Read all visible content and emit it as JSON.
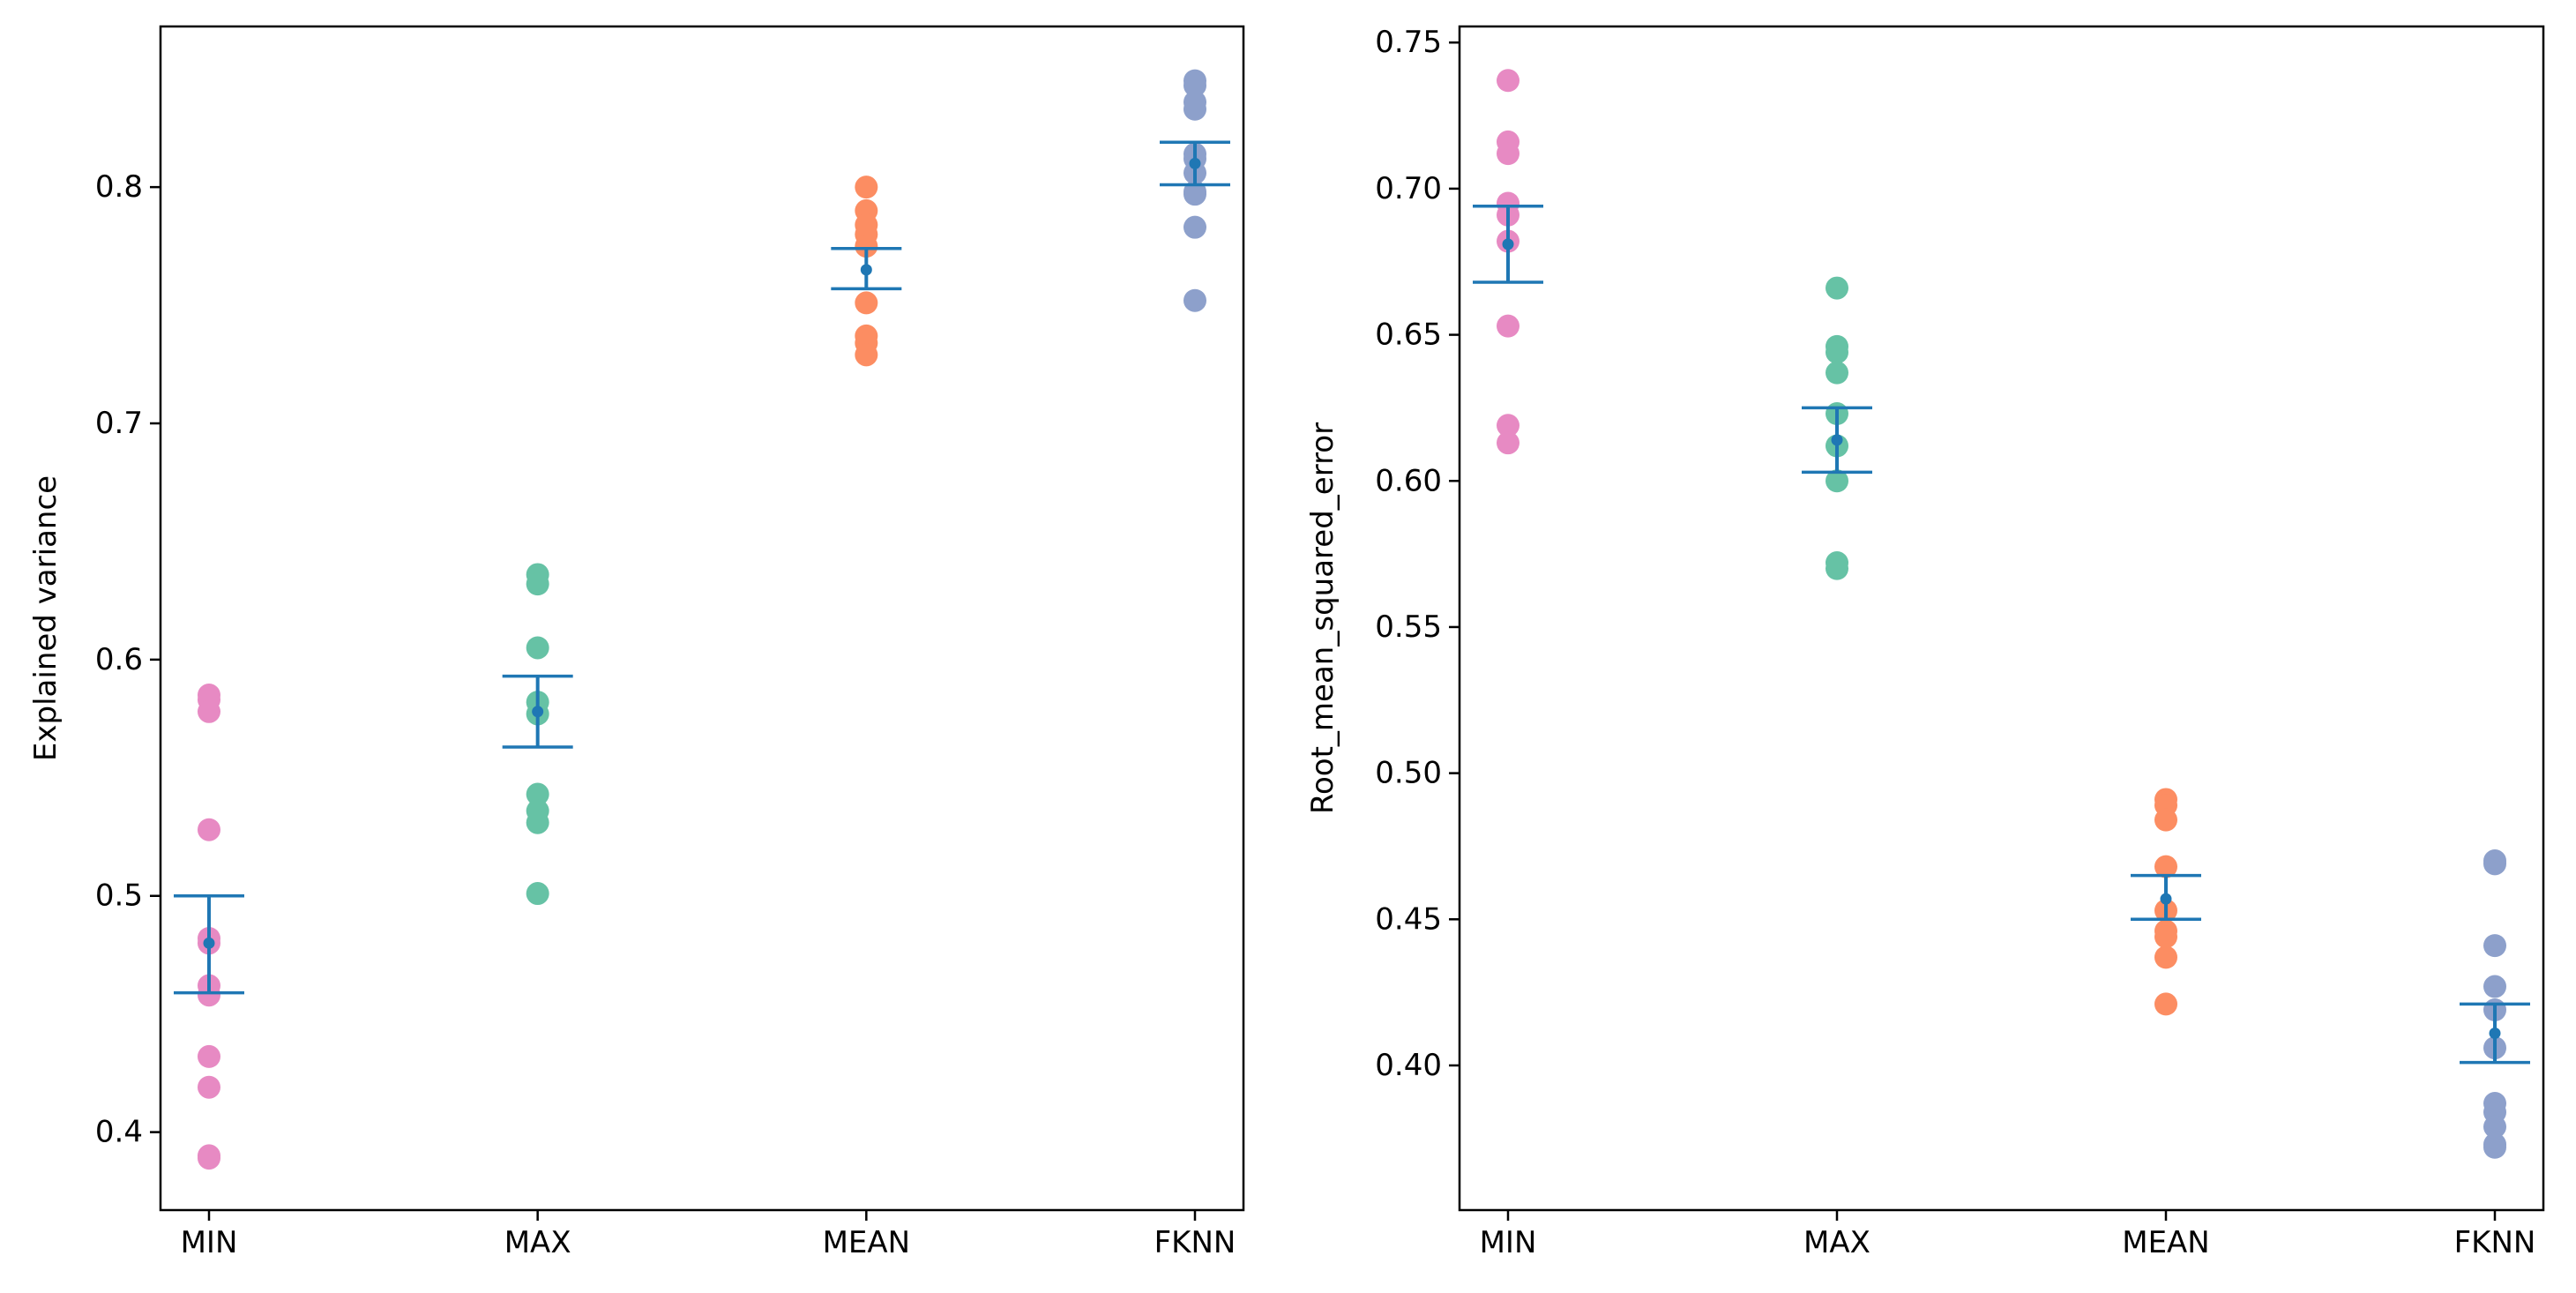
{
  "chart_data": [
    {
      "type": "scatter",
      "title": "",
      "xlabel": "",
      "ylabel": "Explained variance",
      "ylim": [
        0.367,
        0.868
      ],
      "yticks": [
        0.4,
        0.5,
        0.6,
        0.7,
        0.8
      ],
      "ytick_labels": [
        "0.4",
        "0.5",
        "0.6",
        "0.7",
        "0.8"
      ],
      "categories": [
        "MIN",
        "MAX",
        "MEAN",
        "FKNN"
      ],
      "grid": false,
      "series": [
        {
          "name": "MIN",
          "color": "#e78ac3",
          "values": [
            0.585,
            0.583,
            0.578,
            0.528,
            0.482,
            0.48,
            0.462,
            0.458,
            0.432,
            0.419,
            0.39,
            0.389
          ]
        },
        {
          "name": "MAX",
          "color": "#66c2a5",
          "values": [
            0.636,
            0.632,
            0.605,
            0.582,
            0.577,
            0.543,
            0.536,
            0.531,
            0.501
          ]
        },
        {
          "name": "MEAN",
          "color": "#fc8d62",
          "values": [
            0.8,
            0.79,
            0.784,
            0.78,
            0.775,
            0.751,
            0.737,
            0.734,
            0.729
          ]
        },
        {
          "name": "FKNN",
          "color": "#8da0cb",
          "values": [
            0.845,
            0.843,
            0.836,
            0.833,
            0.814,
            0.812,
            0.806,
            0.798,
            0.797,
            0.783,
            0.752
          ]
        }
      ],
      "error_bars": {
        "color": "#1f77b4",
        "mean": [
          0.48,
          0.578,
          0.765,
          0.81
        ],
        "lower": [
          0.459,
          0.563,
          0.757,
          0.801
        ],
        "upper": [
          0.5,
          0.593,
          0.774,
          0.819
        ]
      }
    },
    {
      "type": "scatter",
      "title": "",
      "xlabel": "",
      "ylabel": "Root_mean_squared_error",
      "ylim": [
        0.3505,
        0.7555
      ],
      "yticks": [
        0.4,
        0.45,
        0.5,
        0.55,
        0.6,
        0.65,
        0.7,
        0.75
      ],
      "ytick_labels": [
        "0.40",
        "0.45",
        "0.50",
        "0.55",
        "0.60",
        "0.65",
        "0.70",
        "0.75"
      ],
      "categories": [
        "MIN",
        "MAX",
        "MEAN",
        "FKNN"
      ],
      "grid": false,
      "series": [
        {
          "name": "MIN",
          "color": "#e78ac3",
          "values": [
            0.737,
            0.716,
            0.712,
            0.695,
            0.691,
            0.682,
            0.653,
            0.619,
            0.613
          ]
        },
        {
          "name": "MAX",
          "color": "#66c2a5",
          "values": [
            0.666,
            0.646,
            0.644,
            0.637,
            0.623,
            0.612,
            0.6,
            0.572,
            0.57
          ]
        },
        {
          "name": "MEAN",
          "color": "#fc8d62",
          "values": [
            0.491,
            0.489,
            0.484,
            0.468,
            0.453,
            0.446,
            0.444,
            0.437,
            0.421
          ]
        },
        {
          "name": "FKNN",
          "color": "#8da0cb",
          "values": [
            0.47,
            0.469,
            0.441,
            0.427,
            0.419,
            0.406,
            0.387,
            0.384,
            0.379,
            0.373,
            0.372
          ]
        }
      ],
      "error_bars": {
        "color": "#1f77b4",
        "mean": [
          0.681,
          0.614,
          0.457,
          0.411
        ],
        "lower": [
          0.668,
          0.603,
          0.45,
          0.401
        ],
        "upper": [
          0.694,
          0.625,
          0.465,
          0.421
        ]
      }
    }
  ]
}
